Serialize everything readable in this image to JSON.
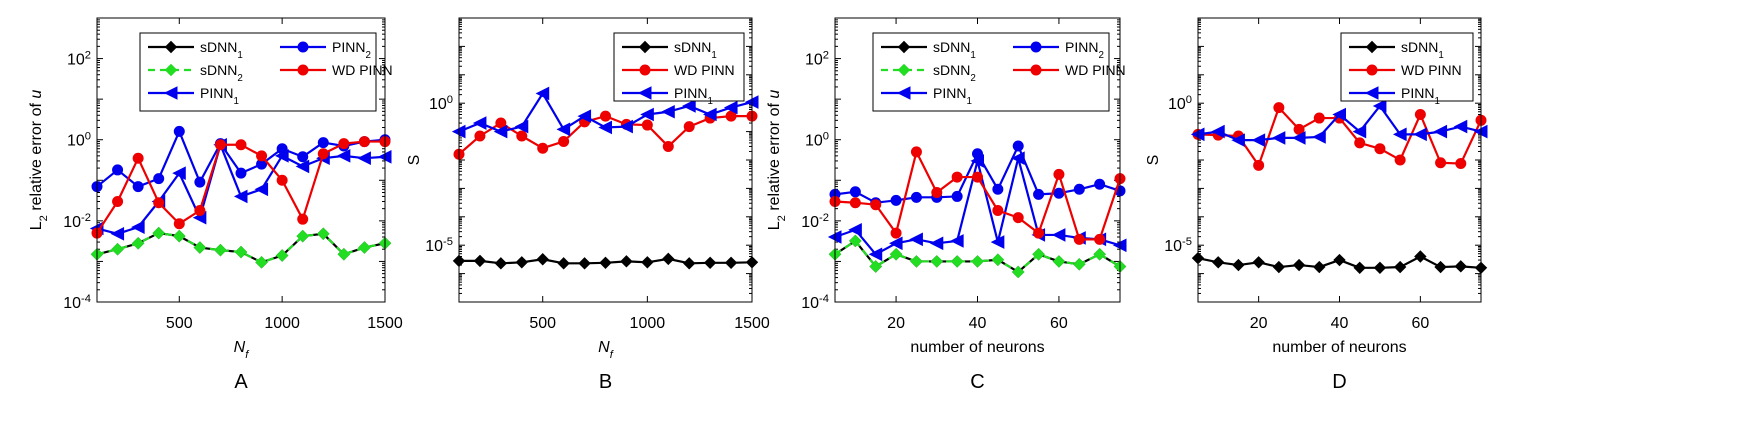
{
  "chart_data": [
    {
      "type": "line",
      "panel_label": "A",
      "xlabel": "N",
      "xlabel_sub": "f",
      "ylabel": "L",
      "ylabel_sub": "2",
      "ylabel_rest": " relative error of ",
      "ylabel_var": "u",
      "yscale": "log",
      "xlim": [
        100,
        1500
      ],
      "ylim": [
        0.0001,
        1000
      ],
      "xticks": [
        500,
        1000,
        1500
      ],
      "xticklabels": [
        "500",
        "1000",
        "1500"
      ],
      "yticks": [
        0.0001,
        0.01,
        1,
        100
      ],
      "yticklabels": [
        {
          "base": "10",
          "exp": "-4"
        },
        {
          "base": "10",
          "exp": "-2"
        },
        {
          "base": "10",
          "exp": "0"
        },
        {
          "base": "10",
          "exp": "2"
        }
      ],
      "legend": {
        "position": "top",
        "columns": 2
      },
      "x": [
        100,
        200,
        300,
        400,
        500,
        600,
        700,
        800,
        900,
        1000,
        1100,
        1200,
        1300,
        1400,
        1500
      ],
      "series": [
        {
          "name": "sDNN",
          "name_sub": "1",
          "color": "#000000",
          "marker": "diamond",
          "dash": "solid",
          "values": [
            0.0015,
            0.002,
            0.0028,
            0.005,
            0.0042,
            0.0022,
            0.0019,
            0.0017,
            0.00095,
            0.0014,
            0.0042,
            0.0048,
            0.0015,
            0.0022,
            0.0028
          ]
        },
        {
          "name": "sDNN",
          "name_sub": "2",
          "color": "#22dd22",
          "marker": "diamond",
          "dash": "dashed",
          "values": [
            0.0015,
            0.002,
            0.0028,
            0.005,
            0.0042,
            0.0022,
            0.0019,
            0.0017,
            0.00095,
            0.0014,
            0.0042,
            0.0048,
            0.0015,
            0.0022,
            0.0028
          ]
        },
        {
          "name": "PINN",
          "name_sub": "1",
          "color": "#0000ee",
          "marker": "triangle-left",
          "dash": "solid",
          "values": [
            0.0065,
            0.0048,
            0.007,
            0.03,
            0.15,
            0.012,
            0.75,
            0.04,
            0.06,
            0.4,
            0.22,
            0.35,
            0.4,
            0.35,
            0.38
          ]
        },
        {
          "name": "PINN",
          "name_sub": "2",
          "color": "#0000ee",
          "marker": "circle",
          "dash": "solid",
          "values": [
            0.07,
            0.18,
            0.07,
            0.11,
            1.6,
            0.09,
            0.8,
            0.15,
            0.25,
            0.6,
            0.38,
            0.85,
            0.7,
            0.9,
            1.0
          ]
        },
        {
          "name": "WD PINN",
          "name_sub": "",
          "color": "#ee0000",
          "marker": "circle",
          "dash": "solid",
          "values": [
            0.005,
            0.03,
            0.35,
            0.028,
            0.0085,
            0.018,
            0.75,
            0.75,
            0.4,
            0.1,
            0.011,
            0.45,
            0.8,
            0.9,
            0.9
          ]
        }
      ],
      "legend_items": [
        {
          "series": 0,
          "col": 0,
          "row": 0
        },
        {
          "series": 3,
          "col": 1,
          "row": 0
        },
        {
          "series": 1,
          "col": 0,
          "row": 1
        },
        {
          "series": 4,
          "col": 1,
          "row": 1
        },
        {
          "series": 2,
          "col": 0,
          "row": 2
        }
      ]
    },
    {
      "type": "line",
      "panel_label": "B",
      "xlabel": "N",
      "xlabel_sub": "f",
      "ylabel": "S",
      "ylabel_sub": "",
      "ylabel_rest": "",
      "ylabel_var": "",
      "yscale": "log",
      "xlim": [
        100,
        1500
      ],
      "ylim": [
        1e-07,
        1000
      ],
      "xticks": [
        500,
        1000,
        1500
      ],
      "xticklabels": [
        "500",
        "1000",
        "1500"
      ],
      "yticks": [
        1e-05,
        1
      ],
      "yticklabels": [
        {
          "base": "10",
          "exp": "-5"
        },
        {
          "base": "10",
          "exp": "0"
        }
      ],
      "legend": {
        "position": "top-right",
        "columns": 1
      },
      "x": [
        100,
        200,
        300,
        400,
        500,
        600,
        700,
        800,
        900,
        1000,
        1100,
        1200,
        1300,
        1400,
        1500
      ],
      "series": [
        {
          "name": "sDNN",
          "name_sub": "1",
          "color": "#000000",
          "marker": "diamond",
          "dash": "solid",
          "values": [
            2.8e-06,
            2.8e-06,
            2.3e-06,
            2.5e-06,
            3.2e-06,
            2.3e-06,
            2.3e-06,
            2.4e-06,
            2.7e-06,
            2.5e-06,
            3.3e-06,
            2.3e-06,
            2.4e-06,
            2.4e-06,
            2.5e-06
          ]
        },
        {
          "name": "WD PINN",
          "name_sub": "",
          "color": "#ee0000",
          "marker": "circle",
          "dash": "solid",
          "values": [
            0.016,
            0.07,
            0.2,
            0.07,
            0.026,
            0.045,
            0.22,
            0.35,
            0.18,
            0.17,
            0.03,
            0.15,
            0.3,
            0.35,
            0.35
          ]
        },
        {
          "name": "PINN",
          "name_sub": "1",
          "color": "#0000ee",
          "marker": "triangle-left",
          "dash": "solid",
          "values": [
            0.1,
            0.2,
            0.1,
            0.15,
            2.2,
            0.12,
            0.35,
            0.14,
            0.15,
            0.4,
            0.5,
            0.8,
            0.4,
            0.7,
            1.1
          ]
        }
      ],
      "legend_items": [
        {
          "series": 0,
          "col": 0,
          "row": 0
        },
        {
          "series": 1,
          "col": 0,
          "row": 1
        },
        {
          "series": 2,
          "col": 0,
          "row": 2
        }
      ]
    },
    {
      "type": "line",
      "panel_label": "C",
      "xlabel": "number of neurons",
      "xlabel_sub": "",
      "ylabel": "L",
      "ylabel_sub": "2",
      "ylabel_rest": " relative error of ",
      "ylabel_var": "u",
      "yscale": "log",
      "xlim": [
        5,
        75
      ],
      "ylim": [
        0.0001,
        1000
      ],
      "xticks": [
        20,
        40,
        60
      ],
      "xticklabels": [
        "20",
        "40",
        "60"
      ],
      "yticks": [
        0.0001,
        0.01,
        1,
        100
      ],
      "yticklabels": [
        {
          "base": "10",
          "exp": "-4"
        },
        {
          "base": "10",
          "exp": "-2"
        },
        {
          "base": "10",
          "exp": "0"
        },
        {
          "base": "10",
          "exp": "2"
        }
      ],
      "legend": {
        "position": "top",
        "columns": 2
      },
      "x": [
        5,
        10,
        15,
        20,
        25,
        30,
        35,
        40,
        45,
        50,
        55,
        60,
        65,
        70,
        75
      ],
      "series": [
        {
          "name": "sDNN",
          "name_sub": "1",
          "color": "#000000",
          "marker": "diamond",
          "dash": "solid",
          "values": [
            0.0015,
            0.0032,
            0.00075,
            0.0015,
            0.001,
            0.001,
            0.001,
            0.001,
            0.0011,
            0.00055,
            0.0015,
            0.001,
            0.00085,
            0.0015,
            0.00075
          ]
        },
        {
          "name": "sDNN",
          "name_sub": "2",
          "color": "#22dd22",
          "marker": "diamond",
          "dash": "dashed",
          "values": [
            0.0015,
            0.0032,
            0.00075,
            0.0015,
            0.001,
            0.001,
            0.001,
            0.001,
            0.0011,
            0.00055,
            0.0015,
            0.001,
            0.00085,
            0.0015,
            0.00075
          ]
        },
        {
          "name": "PINN",
          "name_sub": "1",
          "color": "#0000ee",
          "marker": "triangle-left",
          "dash": "solid",
          "values": [
            0.004,
            0.006,
            0.0015,
            0.0028,
            0.0035,
            0.0028,
            0.0032,
            0.3,
            0.003,
            0.35,
            0.0045,
            0.0045,
            0.0038,
            0.0035,
            0.0025
          ]
        },
        {
          "name": "PINN",
          "name_sub": "2",
          "color": "#0000ee",
          "marker": "circle",
          "dash": "solid",
          "values": [
            0.045,
            0.052,
            0.028,
            0.032,
            0.038,
            0.038,
            0.04,
            0.45,
            0.06,
            0.7,
            0.045,
            0.048,
            0.06,
            0.08,
            0.055
          ]
        },
        {
          "name": "WD PINN",
          "name_sub": "",
          "color": "#ee0000",
          "marker": "circle",
          "dash": "solid",
          "values": [
            0.03,
            0.028,
            0.025,
            0.005,
            0.5,
            0.05,
            0.12,
            0.12,
            0.018,
            0.012,
            0.005,
            0.14,
            0.0035,
            0.0035,
            0.11
          ]
        }
      ],
      "legend_items": [
        {
          "series": 0,
          "col": 0,
          "row": 0
        },
        {
          "series": 3,
          "col": 1,
          "row": 0
        },
        {
          "series": 1,
          "col": 0,
          "row": 1
        },
        {
          "series": 4,
          "col": 1,
          "row": 1
        },
        {
          "series": 2,
          "col": 0,
          "row": 2
        }
      ]
    },
    {
      "type": "line",
      "panel_label": "D",
      "xlabel": "number of neurons",
      "xlabel_sub": "",
      "ylabel": "S",
      "ylabel_sub": "",
      "ylabel_rest": "",
      "ylabel_var": "",
      "yscale": "log",
      "xlim": [
        5,
        75
      ],
      "ylim": [
        1e-07,
        1000
      ],
      "xticks": [
        20,
        40,
        60
      ],
      "xticklabels": [
        "20",
        "40",
        "60"
      ],
      "yticks": [
        1e-05,
        1
      ],
      "yticklabels": [
        {
          "base": "10",
          "exp": "-5"
        },
        {
          "base": "10",
          "exp": "0"
        }
      ],
      "legend": {
        "position": "top-right",
        "columns": 1
      },
      "x": [
        5,
        10,
        15,
        20,
        25,
        30,
        35,
        40,
        45,
        50,
        55,
        60,
        65,
        70,
        75
      ],
      "series": [
        {
          "name": "sDNN",
          "name_sub": "1",
          "color": "#000000",
          "marker": "diamond",
          "dash": "solid",
          "values": [
            3.5e-06,
            2.5e-06,
            2e-06,
            2.5e-06,
            1.7e-06,
            2e-06,
            1.7e-06,
            3e-06,
            1.6e-06,
            1.6e-06,
            1.7e-06,
            4e-06,
            1.7e-06,
            1.8e-06,
            1.6e-06
          ]
        },
        {
          "name": "WD PINN",
          "name_sub": "",
          "color": "#ee0000",
          "marker": "circle",
          "dash": "solid",
          "values": [
            0.08,
            0.075,
            0.07,
            0.0065,
            0.7,
            0.12,
            0.3,
            0.3,
            0.04,
            0.025,
            0.01,
            0.4,
            0.008,
            0.0075,
            0.25
          ]
        },
        {
          "name": "PINN",
          "name_sub": "1",
          "color": "#0000ee",
          "marker": "triangle-left",
          "dash": "solid",
          "values": [
            0.08,
            0.1,
            0.05,
            0.05,
            0.06,
            0.06,
            0.065,
            0.4,
            0.1,
            0.8,
            0.08,
            0.08,
            0.1,
            0.15,
            0.1
          ]
        }
      ],
      "legend_items": [
        {
          "series": 0,
          "col": 0,
          "row": 0
        },
        {
          "series": 1,
          "col": 0,
          "row": 1
        },
        {
          "series": 2,
          "col": 0,
          "row": 2
        }
      ]
    }
  ]
}
